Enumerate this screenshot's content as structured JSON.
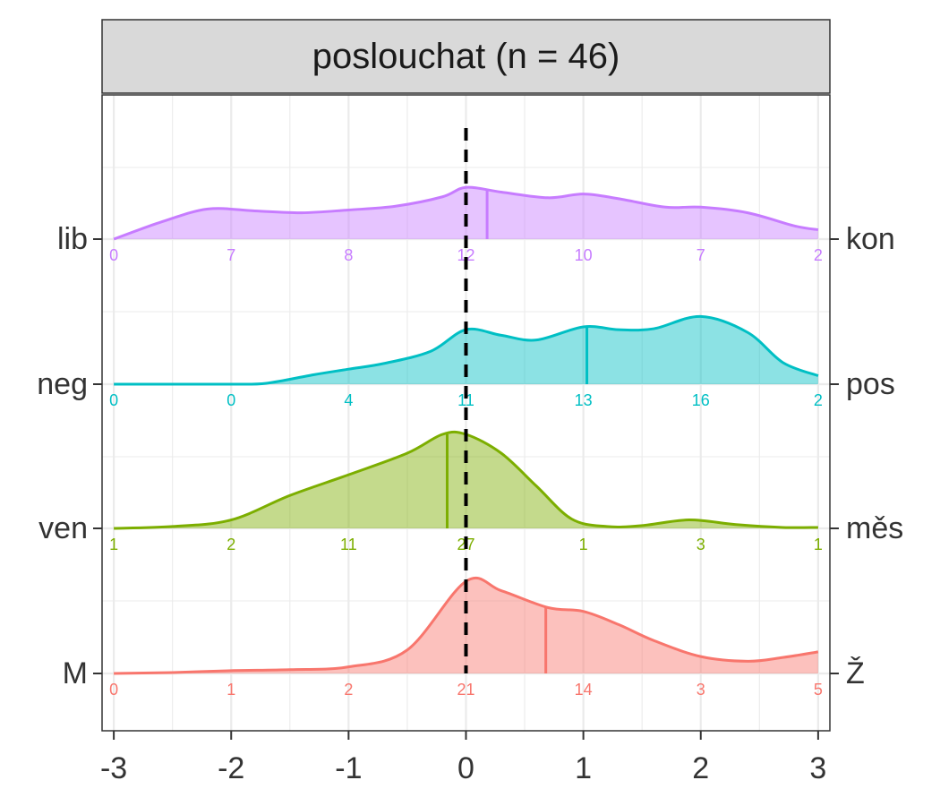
{
  "chart_data": {
    "type": "ridgeline-density",
    "panel_title": "poslouchat (n = 46)",
    "xlim": [
      -3.1,
      3.1
    ],
    "x_ticks": [
      "-3",
      "-2",
      "-1",
      "0",
      "1",
      "2",
      "3"
    ],
    "reference_line_x": 0,
    "grid": true,
    "rows": [
      {
        "left_label": "M",
        "right_label": "Ž",
        "color": "#F8766D",
        "mean": 0.68,
        "counts": [
          "0",
          "1",
          "2",
          "21",
          "14",
          "3",
          "5"
        ],
        "density": [
          [
            -3,
            0.0
          ],
          [
            -2.5,
            0.01
          ],
          [
            -2,
            0.03
          ],
          [
            -1.5,
            0.04
          ],
          [
            -1,
            0.07
          ],
          [
            -0.5,
            0.25
          ],
          [
            0,
            0.98
          ],
          [
            0.3,
            0.88
          ],
          [
            0.7,
            0.7
          ],
          [
            1,
            0.66
          ],
          [
            1.3,
            0.52
          ],
          [
            1.6,
            0.35
          ],
          [
            2,
            0.18
          ],
          [
            2.4,
            0.13
          ],
          [
            2.7,
            0.17
          ],
          [
            3,
            0.23
          ]
        ]
      },
      {
        "left_label": "ven",
        "right_label": "měs",
        "color": "#7CAE00",
        "mean": -0.16,
        "counts": [
          "1",
          "2",
          "11",
          "27",
          "1",
          "3",
          "1"
        ],
        "density": [
          [
            -3,
            0.0
          ],
          [
            -2.5,
            0.02
          ],
          [
            -2,
            0.09
          ],
          [
            -1.5,
            0.35
          ],
          [
            -1,
            0.57
          ],
          [
            -0.5,
            0.8
          ],
          [
            -0.2,
            1.0
          ],
          [
            0,
            1.0
          ],
          [
            0.3,
            0.8
          ],
          [
            0.6,
            0.45
          ],
          [
            0.9,
            0.1
          ],
          [
            1.2,
            0.02
          ],
          [
            1.5,
            0.03
          ],
          [
            1.9,
            0.09
          ],
          [
            2.3,
            0.04
          ],
          [
            2.7,
            0.01
          ],
          [
            3,
            0.01
          ]
        ]
      },
      {
        "left_label": "neg",
        "right_label": "pos",
        "color": "#00BFC4",
        "mean": 1.03,
        "counts": [
          "0",
          "0",
          "4",
          "11",
          "13",
          "16",
          "2"
        ],
        "density": [
          [
            -3,
            0.0
          ],
          [
            -2.5,
            0.0
          ],
          [
            -2,
            0.0
          ],
          [
            -1.7,
            0.01
          ],
          [
            -1.3,
            0.1
          ],
          [
            -1,
            0.16
          ],
          [
            -0.7,
            0.22
          ],
          [
            -0.3,
            0.35
          ],
          [
            0,
            0.58
          ],
          [
            0.3,
            0.52
          ],
          [
            0.6,
            0.47
          ],
          [
            1,
            0.61
          ],
          [
            1.3,
            0.58
          ],
          [
            1.6,
            0.59
          ],
          [
            2,
            0.72
          ],
          [
            2.4,
            0.55
          ],
          [
            2.7,
            0.23
          ],
          [
            3,
            0.09
          ]
        ]
      },
      {
        "left_label": "lib",
        "right_label": "kon",
        "color": "#C77CFF",
        "mean": 0.18,
        "counts": [
          "0",
          "7",
          "8",
          "12",
          "10",
          "7",
          "2"
        ],
        "density": [
          [
            -3,
            0.0
          ],
          [
            -2.6,
            0.18
          ],
          [
            -2.2,
            0.32
          ],
          [
            -1.8,
            0.3
          ],
          [
            -1.4,
            0.28
          ],
          [
            -1,
            0.31
          ],
          [
            -0.6,
            0.35
          ],
          [
            -0.2,
            0.45
          ],
          [
            0,
            0.55
          ],
          [
            0.3,
            0.5
          ],
          [
            0.7,
            0.44
          ],
          [
            1,
            0.48
          ],
          [
            1.3,
            0.43
          ],
          [
            1.7,
            0.34
          ],
          [
            2,
            0.34
          ],
          [
            2.4,
            0.28
          ],
          [
            2.8,
            0.14
          ],
          [
            3,
            0.1
          ]
        ]
      }
    ]
  }
}
